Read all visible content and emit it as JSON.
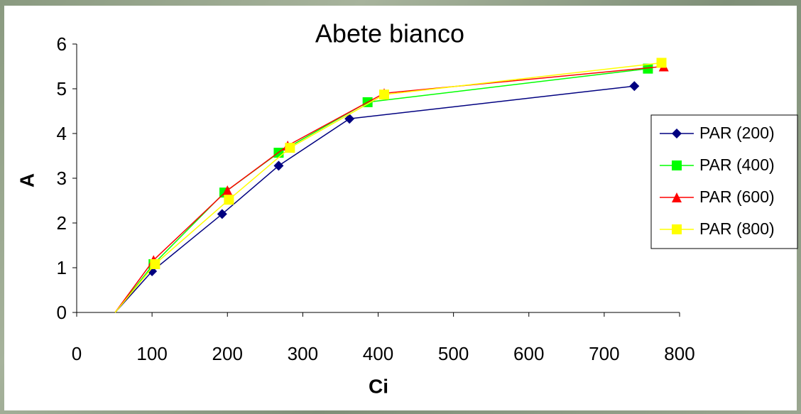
{
  "chart_data": {
    "type": "line",
    "title": "Abete bianco",
    "x_label": "Ci",
    "y_label": "A",
    "xlim": [
      0,
      800
    ],
    "xticks": [
      0,
      100,
      200,
      300,
      400,
      500,
      600,
      700,
      800
    ],
    "ylim": [
      0,
      6
    ],
    "yticks": [
      0,
      1,
      2,
      3,
      4,
      5,
      6
    ],
    "legend": "right",
    "series": [
      {
        "name": "PAR (200)",
        "color": "#000080",
        "marker": "diamond",
        "x": [
          51,
          100,
          193,
          268,
          362,
          740
        ],
        "values": [
          0,
          0.92,
          2.2,
          3.28,
          4.33,
          5.06
        ]
      },
      {
        "name": "PAR (400)",
        "color": "#00ff00",
        "marker": "square",
        "x": [
          51,
          102,
          196,
          268,
          386,
          758
        ],
        "values": [
          0,
          1.08,
          2.68,
          3.57,
          4.7,
          5.45
        ]
      },
      {
        "name": "PAR (600)",
        "color": "#ff0000",
        "marker": "triangle",
        "x": [
          51,
          102,
          200,
          280,
          408,
          779
        ],
        "values": [
          0,
          1.17,
          2.73,
          3.73,
          4.9,
          5.5
        ]
      },
      {
        "name": "PAR (800)",
        "color": "#ffff00",
        "marker": "square",
        "x": [
          51,
          104,
          202,
          283,
          408,
          776
        ],
        "values": [
          0,
          1.08,
          2.52,
          3.68,
          4.87,
          5.58
        ]
      }
    ]
  }
}
